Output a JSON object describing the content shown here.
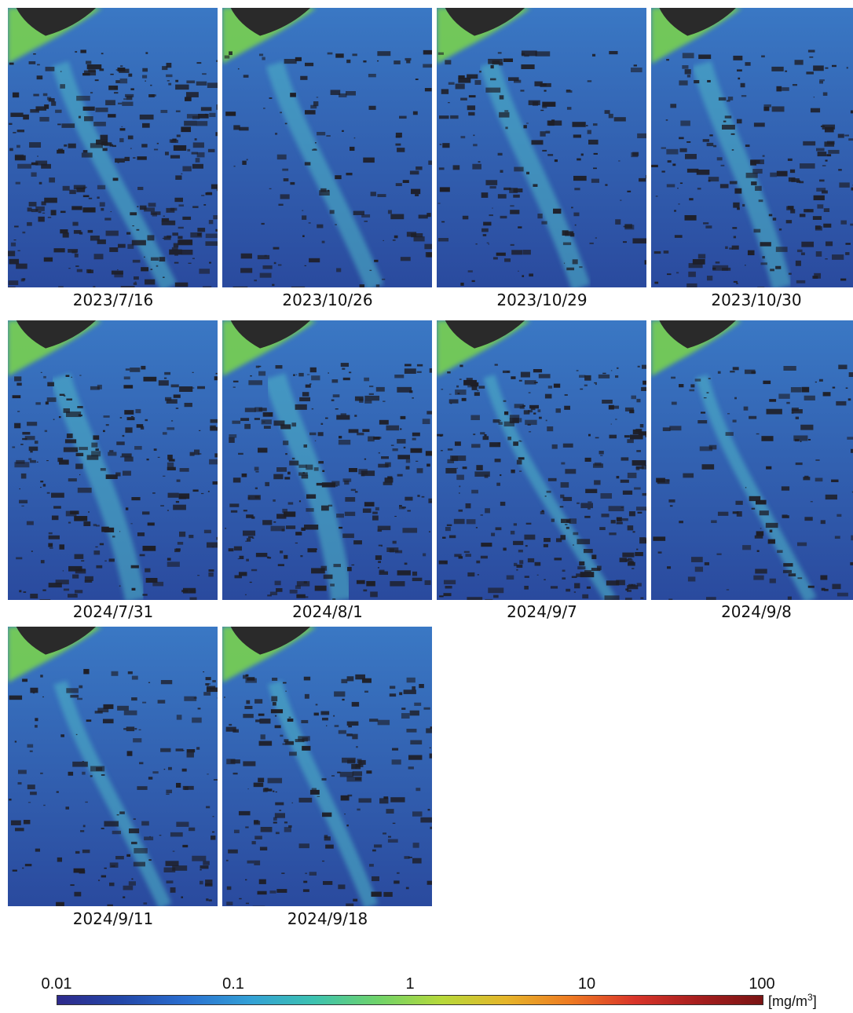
{
  "panels": [
    {
      "date": "2023/7/16"
    },
    {
      "date": "2023/10/26"
    },
    {
      "date": "2023/10/29"
    },
    {
      "date": "2023/10/30"
    },
    {
      "date": "2024/7/31"
    },
    {
      "date": "2024/8/1"
    },
    {
      "date": "2024/9/7"
    },
    {
      "date": "2024/9/8"
    },
    {
      "date": "2024/9/11"
    },
    {
      "date": "2024/9/18"
    }
  ],
  "colorbar": {
    "ticks": [
      "0.01",
      "0.1",
      "1",
      "10",
      "100"
    ],
    "unit_base": "[mg/m",
    "unit_sup": "3",
    "unit_end": "]",
    "colors": [
      "#2e2a8c",
      "#2347a8",
      "#2a6fd0",
      "#33a0d6",
      "#3cc2b0",
      "#6fd36a",
      "#b7d93a",
      "#e6b52a",
      "#ee7a22",
      "#d9352a",
      "#a61e1e",
      "#7a1414"
    ]
  },
  "colors": {
    "ocean_deep": "#2a4a9e",
    "ocean_mid": "#3a78c4",
    "bloom": "#4fb8c8",
    "coast": "#7cd64a",
    "land": "#2a2a2a",
    "cloud": "#1e1e26"
  }
}
